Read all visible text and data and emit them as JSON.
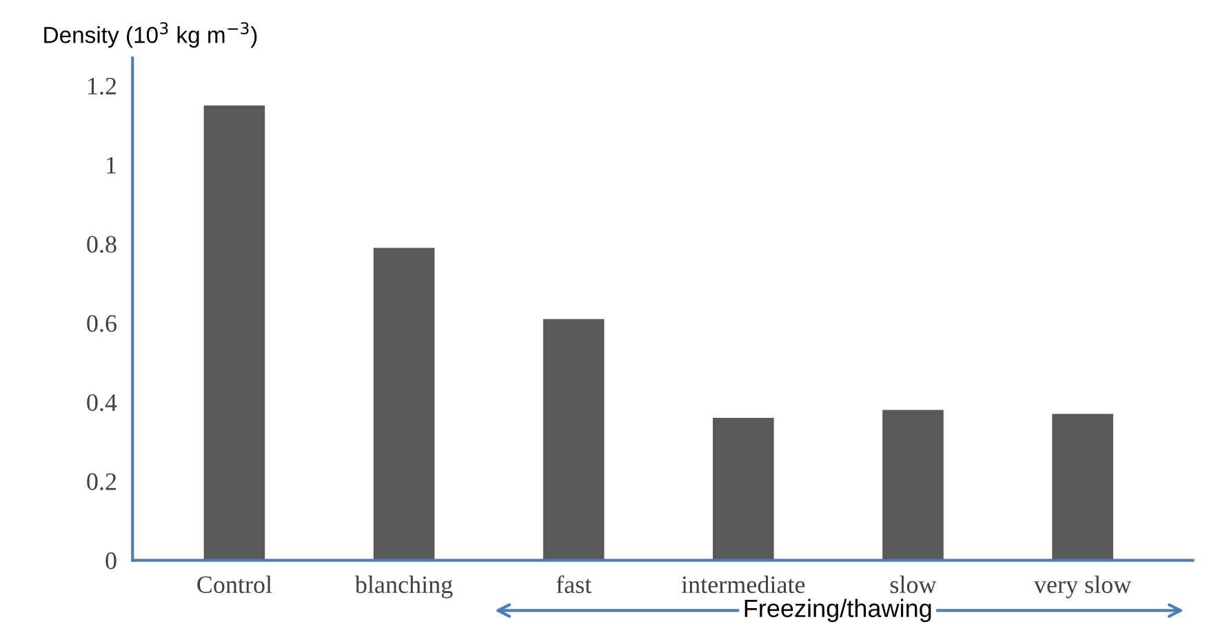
{
  "chart_data": {
    "type": "bar",
    "ylabel": "Density (10$^{3}$ kg m$^{−3}$)",
    "categories": [
      "Control",
      "blanching",
      "fast",
      "intermediate",
      "slow",
      "very slow"
    ],
    "values": [
      1.15,
      0.79,
      0.61,
      0.36,
      0.38,
      0.37
    ],
    "color": "#595959",
    "ylim": [
      0,
      1.27
    ],
    "yticks": [
      0,
      0.2,
      0.4,
      0.6,
      0.8,
      1,
      1.2
    ],
    "grid": false,
    "legend": false,
    "annotations": [
      "Freezing/thawing"
    ]
  }
}
